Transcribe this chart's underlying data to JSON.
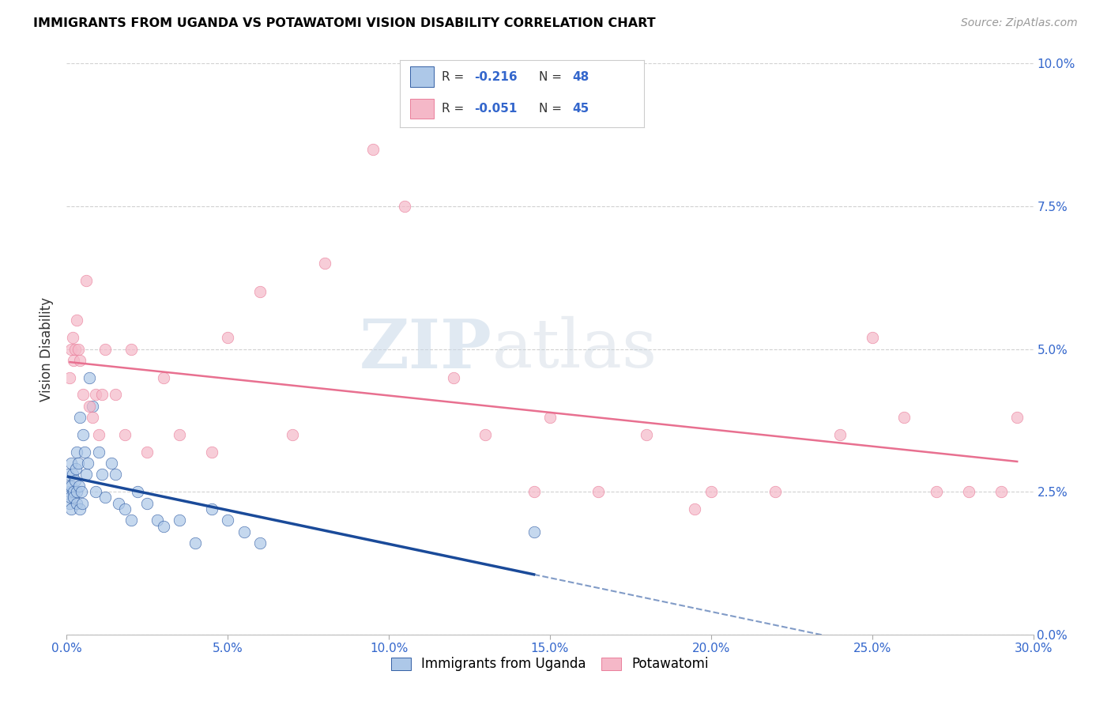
{
  "title": "IMMIGRANTS FROM UGANDA VS POTAWATOMI VISION DISABILITY CORRELATION CHART",
  "source": "Source: ZipAtlas.com",
  "xlabel_vals": [
    0.0,
    5.0,
    10.0,
    15.0,
    20.0,
    25.0,
    30.0
  ],
  "ylabel_vals": [
    0.0,
    2.5,
    5.0,
    7.5,
    10.0
  ],
  "ylabel_label": "Vision Disability",
  "legend_label1": "Immigrants from Uganda",
  "legend_label2": "Potawatomi",
  "R1": "-0.216",
  "N1": "48",
  "R2": "-0.051",
  "N2": "45",
  "color1": "#adc8e8",
  "color2": "#f5b8c8",
  "line_color1": "#1a4a99",
  "line_color2": "#e87090",
  "uganda_x": [
    0.05,
    0.08,
    0.1,
    0.1,
    0.12,
    0.13,
    0.15,
    0.15,
    0.18,
    0.2,
    0.22,
    0.25,
    0.28,
    0.3,
    0.3,
    0.32,
    0.35,
    0.38,
    0.4,
    0.42,
    0.45,
    0.48,
    0.5,
    0.55,
    0.6,
    0.65,
    0.7,
    0.8,
    0.9,
    1.0,
    1.1,
    1.2,
    1.4,
    1.5,
    1.6,
    1.8,
    2.0,
    2.2,
    2.5,
    2.8,
    3.0,
    3.5,
    4.0,
    4.5,
    5.0,
    5.5,
    6.0,
    14.5
  ],
  "uganda_y": [
    2.8,
    2.5,
    2.3,
    2.6,
    2.4,
    2.2,
    2.6,
    3.0,
    2.8,
    2.5,
    2.4,
    2.7,
    2.9,
    3.2,
    2.3,
    2.5,
    3.0,
    2.6,
    3.8,
    2.2,
    2.5,
    2.3,
    3.5,
    3.2,
    2.8,
    3.0,
    4.5,
    4.0,
    2.5,
    3.2,
    2.8,
    2.4,
    3.0,
    2.8,
    2.3,
    2.2,
    2.0,
    2.5,
    2.3,
    2.0,
    1.9,
    2.0,
    1.6,
    2.2,
    2.0,
    1.8,
    1.6,
    1.8
  ],
  "potawatomi_x": [
    0.1,
    0.15,
    0.18,
    0.2,
    0.25,
    0.3,
    0.35,
    0.4,
    0.5,
    0.6,
    0.7,
    0.8,
    0.9,
    1.0,
    1.1,
    1.2,
    1.5,
    1.8,
    2.0,
    2.5,
    3.0,
    3.5,
    4.5,
    5.0,
    6.0,
    7.0,
    8.0,
    9.5,
    10.5,
    12.0,
    13.0,
    14.5,
    15.0,
    16.5,
    18.0,
    19.5,
    20.0,
    22.0,
    24.0,
    25.0,
    26.0,
    27.0,
    28.0,
    29.0,
    29.5
  ],
  "potawatomi_y": [
    4.5,
    5.0,
    5.2,
    4.8,
    5.0,
    5.5,
    5.0,
    4.8,
    4.2,
    6.2,
    4.0,
    3.8,
    4.2,
    3.5,
    4.2,
    5.0,
    4.2,
    3.5,
    5.0,
    3.2,
    4.5,
    3.5,
    3.2,
    5.2,
    6.0,
    3.5,
    6.5,
    8.5,
    7.5,
    4.5,
    3.5,
    2.5,
    3.8,
    2.5,
    3.5,
    2.2,
    2.5,
    2.5,
    3.5,
    5.2,
    3.8,
    2.5,
    2.5,
    2.5,
    3.8
  ],
  "watermark_zip": "ZIP",
  "watermark_atlas": "atlas",
  "xlim": [
    0,
    30
  ],
  "ylim": [
    0,
    10
  ],
  "blue_solid_end": 14.5,
  "pink_line_start": 0.1,
  "pink_line_end": 29.5
}
